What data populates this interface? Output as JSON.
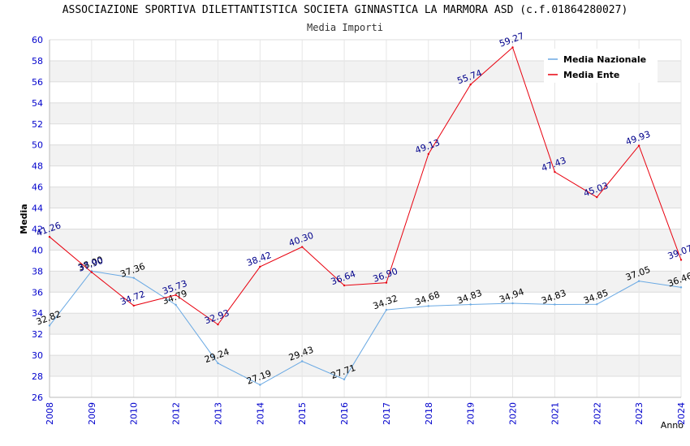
{
  "chart_data": {
    "type": "line",
    "title": "ASSOCIAZIONE SPORTIVA DILETTANTISTICA SOCIETA GINNASTICA LA MARMORA ASD (c.f.01864280027)",
    "subtitle": "Media Importi",
    "xlabel": "Anno",
    "ylabel": "Media",
    "ylim": [
      26,
      60
    ],
    "yticks": [
      "26",
      "28",
      "30",
      "32",
      "34",
      "36",
      "38",
      "40",
      "42",
      "44",
      "46",
      "48",
      "50",
      "52",
      "54",
      "56",
      "58",
      "60"
    ],
    "categories": [
      "2008",
      "2009",
      "2010",
      "2012",
      "2013",
      "2014",
      "2015",
      "2016",
      "2017",
      "2018",
      "2019",
      "2020",
      "2021",
      "2022",
      "2023",
      "2024"
    ],
    "series": [
      {
        "name": "Media Nazionale",
        "color": "#6aa9e3",
        "values": [
          32.82,
          38.0,
          37.36,
          34.79,
          29.24,
          27.19,
          29.43,
          27.71,
          34.32,
          34.68,
          34.83,
          34.94,
          34.83,
          34.85,
          37.05,
          36.46
        ],
        "labels": [
          "32.82",
          "38.00",
          "37.36",
          "34.79",
          "29.24",
          "27.19",
          "29.43",
          "27.71",
          "34.32",
          "34.68",
          "34.83",
          "34.94",
          "34.83",
          "34.85",
          "37.05",
          "36.46"
        ]
      },
      {
        "name": "Media Ente",
        "color": "#e8000e",
        "values": [
          41.26,
          37.9,
          34.72,
          35.73,
          32.93,
          38.42,
          40.3,
          36.64,
          36.9,
          49.13,
          55.74,
          59.27,
          47.43,
          45.03,
          49.93,
          39.07
        ],
        "labels": [
          "41.26",
          "37.90",
          "34.72",
          "35.73",
          "32.93",
          "38.42",
          "40.30",
          "36.64",
          "36.90",
          "49.13",
          "55.74",
          "59.27",
          "47.43",
          "45.03",
          "49.93",
          "39.07"
        ]
      }
    ],
    "legend": "top-right",
    "grid": true
  }
}
